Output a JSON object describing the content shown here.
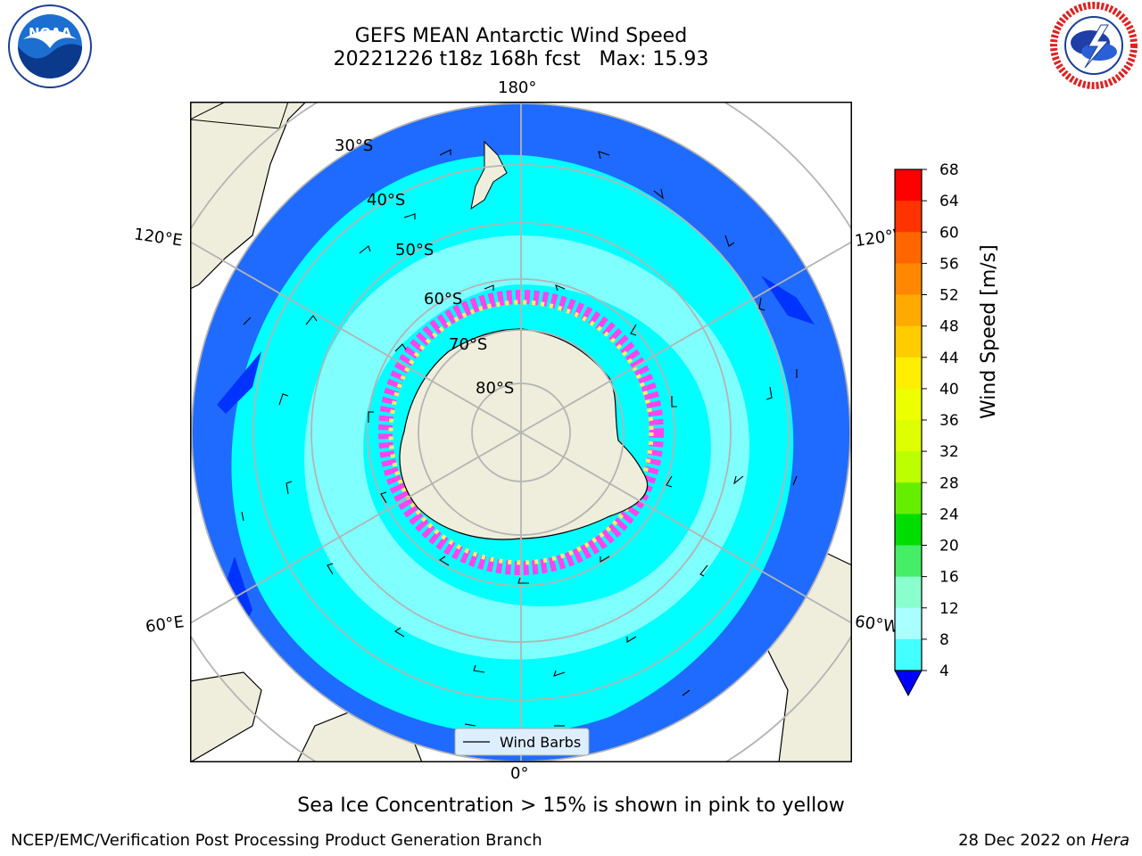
{
  "title": {
    "line1": "GEFS MEAN Antarctic Wind Speed",
    "line2": "20221226 t18z 168h fcst   Max: 15.93"
  },
  "map": {
    "longitude_labels": [
      "180°",
      "120°E",
      "120°W",
      "60°E",
      "60°W",
      "0°"
    ],
    "latitude_labels": [
      "30°S",
      "40°S",
      "50°S",
      "60°S",
      "70°S",
      "80°S"
    ],
    "legend_label": "Wind Barbs"
  },
  "colorbar": {
    "label": "Wind Speed [m/s]",
    "ticks": [
      "68",
      "64",
      "60",
      "56",
      "52",
      "48",
      "44",
      "40",
      "36",
      "32",
      "28",
      "24",
      "20",
      "16",
      "12",
      "8",
      "4"
    ],
    "colors": [
      "#ff0000",
      "#ff3300",
      "#ff6600",
      "#ff8800",
      "#ffaa00",
      "#ffcc00",
      "#ffee00",
      "#eeff00",
      "#ddff00",
      "#bbff00",
      "#66ee00",
      "#00dd00",
      "#44ee66",
      "#88ffcc",
      "#aaffff",
      "#44ffff",
      "#00ffff",
      "#0088ff",
      "#0033ff"
    ]
  },
  "caption": "Sea Ice Concentration > 15% is shown in pink to yellow",
  "footer": {
    "left": "NCEP/EMC/Verification Post Processing Product Generation Branch",
    "date": "28 Dec 2022 on ",
    "host": "Hera"
  },
  "logos": {
    "noaa_text": "NOAA",
    "nws_text": "NATIONAL WEATHER SERVICE"
  },
  "colors": {
    "land": "#efeedc",
    "ocean_low": "#1f6bff",
    "ocean_mid": "#00ffff",
    "ocean_high": "#80ffff",
    "ice_pink": "#ff44ee",
    "ice_yellow": "#ffee66"
  }
}
